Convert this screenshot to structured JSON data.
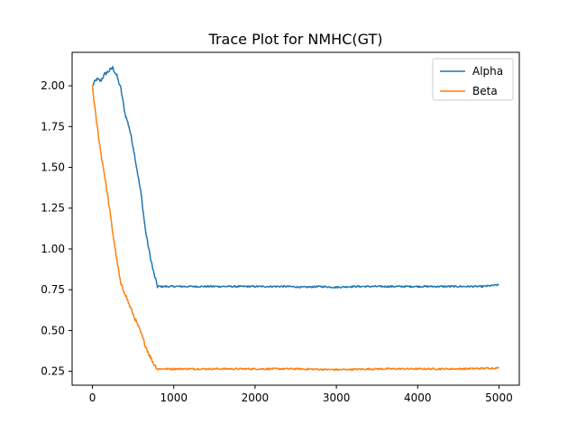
{
  "chart_data": {
    "type": "line",
    "title": "Trace Plot for NMHC(GT)",
    "xlabel": "",
    "ylabel": "",
    "xlim": [
      -250,
      5250
    ],
    "ylim": [
      0.165,
      2.205
    ],
    "x_ticks": [
      0,
      1000,
      2000,
      3000,
      4000,
      5000
    ],
    "y_ticks": [
      0.25,
      0.5,
      0.75,
      1.0,
      1.25,
      1.5,
      1.75,
      2.0
    ],
    "grid": false,
    "legend": {
      "position": "top-right",
      "entries": [
        "Alpha",
        "Beta"
      ]
    },
    "series": [
      {
        "name": "Alpha",
        "color": "#1f77b4",
        "points": [
          [
            0,
            2.0
          ],
          [
            50,
            2.04
          ],
          [
            100,
            2.03
          ],
          [
            150,
            2.07
          ],
          [
            200,
            2.09
          ],
          [
            250,
            2.11
          ],
          [
            300,
            2.06
          ],
          [
            350,
            1.98
          ],
          [
            400,
            1.83
          ],
          [
            450,
            1.75
          ],
          [
            500,
            1.63
          ],
          [
            550,
            1.48
          ],
          [
            600,
            1.33
          ],
          [
            650,
            1.12
          ],
          [
            700,
            0.98
          ],
          [
            750,
            0.86
          ],
          [
            800,
            0.77
          ],
          [
            900,
            0.77
          ],
          [
            1000,
            0.77
          ],
          [
            1200,
            0.77
          ],
          [
            1400,
            0.77
          ],
          [
            1600,
            0.77
          ],
          [
            1800,
            0.77
          ],
          [
            2000,
            0.77
          ],
          [
            2200,
            0.77
          ],
          [
            2400,
            0.77
          ],
          [
            2600,
            0.765
          ],
          [
            2800,
            0.77
          ],
          [
            3000,
            0.765
          ],
          [
            3200,
            0.77
          ],
          [
            3400,
            0.77
          ],
          [
            3600,
            0.77
          ],
          [
            3800,
            0.77
          ],
          [
            4000,
            0.77
          ],
          [
            4200,
            0.77
          ],
          [
            4400,
            0.77
          ],
          [
            4600,
            0.77
          ],
          [
            4800,
            0.77
          ],
          [
            5000,
            0.78
          ]
        ]
      },
      {
        "name": "Beta",
        "color": "#ff7f0e",
        "points": [
          [
            0,
            2.0
          ],
          [
            25,
            1.88
          ],
          [
            50,
            1.78
          ],
          [
            100,
            1.6
          ],
          [
            150,
            1.45
          ],
          [
            200,
            1.28
          ],
          [
            250,
            1.1
          ],
          [
            300,
            0.93
          ],
          [
            350,
            0.78
          ],
          [
            400,
            0.73
          ],
          [
            450,
            0.66
          ],
          [
            500,
            0.6
          ],
          [
            550,
            0.54
          ],
          [
            600,
            0.48
          ],
          [
            650,
            0.41
          ],
          [
            700,
            0.35
          ],
          [
            750,
            0.3
          ],
          [
            800,
            0.265
          ],
          [
            900,
            0.265
          ],
          [
            1000,
            0.265
          ],
          [
            1500,
            0.265
          ],
          [
            2000,
            0.265
          ],
          [
            2500,
            0.265
          ],
          [
            3000,
            0.26
          ],
          [
            3500,
            0.265
          ],
          [
            4000,
            0.265
          ],
          [
            4500,
            0.265
          ],
          [
            5000,
            0.27
          ]
        ]
      }
    ]
  }
}
